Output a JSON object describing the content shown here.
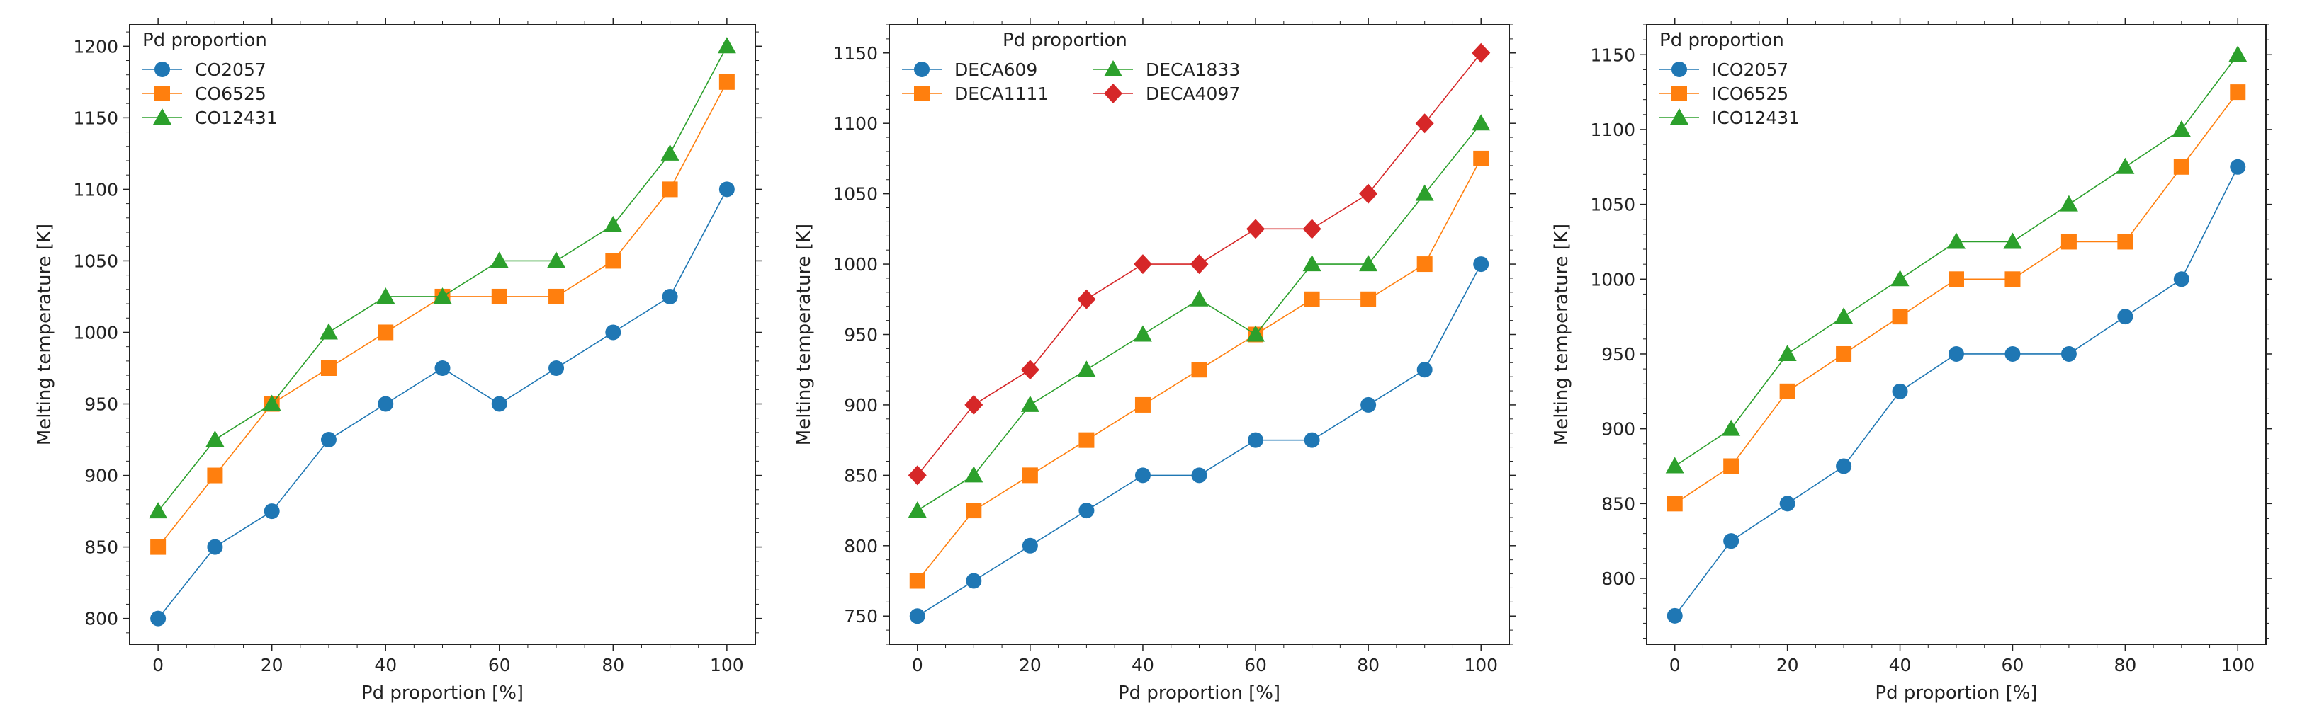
{
  "chart_data": [
    {
      "type": "line",
      "xlabel": "Pd proportion [%]",
      "ylabel": "Melting temperature [K]",
      "x": [
        0,
        10,
        20,
        30,
        40,
        50,
        60,
        70,
        80,
        90,
        100
      ],
      "xlim": [
        -5,
        105
      ],
      "ylim": [
        782,
        1215
      ],
      "xticks": [
        0,
        20,
        40,
        60,
        80,
        100
      ],
      "yticks": [
        800,
        850,
        900,
        950,
        1000,
        1050,
        1100,
        1150,
        1200
      ],
      "legend_title": "Pd proportion",
      "legend_columns": 1,
      "legend_position": "top-left",
      "series": [
        {
          "name": "CO2057",
          "color": "#1f77b4",
          "marker": "circle",
          "values": [
            800,
            850,
            875,
            925,
            950,
            975,
            950,
            975,
            1000,
            1025,
            1100
          ]
        },
        {
          "name": "CO6525",
          "color": "#ff7f0e",
          "marker": "square",
          "values": [
            850,
            900,
            950,
            975,
            1000,
            1025,
            1025,
            1025,
            1050,
            1100,
            1175
          ]
        },
        {
          "name": "CO12431",
          "color": "#2ca02c",
          "marker": "triangle",
          "values": [
            875,
            925,
            950,
            1000,
            1025,
            1025,
            1050,
            1050,
            1075,
            1125,
            1200
          ]
        }
      ]
    },
    {
      "type": "line",
      "xlabel": "Pd proportion [%]",
      "ylabel": "Melting temperature [K]",
      "x": [
        0,
        10,
        20,
        30,
        40,
        50,
        60,
        70,
        80,
        90,
        100
      ],
      "xlim": [
        -5,
        105
      ],
      "ylim": [
        730,
        1170
      ],
      "xticks": [
        0,
        20,
        40,
        60,
        80,
        100
      ],
      "yticks": [
        750,
        800,
        850,
        900,
        950,
        1000,
        1050,
        1100,
        1150
      ],
      "legend_title": "Pd proportion",
      "legend_columns": 2,
      "legend_position": "top-left",
      "series": [
        {
          "name": "DECA609",
          "color": "#1f77b4",
          "marker": "circle",
          "values": [
            750,
            775,
            800,
            825,
            850,
            850,
            875,
            875,
            900,
            925,
            1000
          ]
        },
        {
          "name": "DECA1111",
          "color": "#ff7f0e",
          "marker": "square",
          "values": [
            775,
            825,
            850,
            875,
            900,
            925,
            950,
            975,
            975,
            1000,
            1075
          ]
        },
        {
          "name": "DECA1833",
          "color": "#2ca02c",
          "marker": "triangle",
          "values": [
            825,
            850,
            900,
            925,
            950,
            975,
            950,
            1000,
            1000,
            1050,
            1100
          ]
        },
        {
          "name": "DECA4097",
          "color": "#d62728",
          "marker": "diamond",
          "values": [
            850,
            900,
            925,
            975,
            1000,
            1000,
            1025,
            1025,
            1050,
            1100,
            1150
          ]
        }
      ]
    },
    {
      "type": "line",
      "xlabel": "Pd proportion [%]",
      "ylabel": "Melting temperature [K]",
      "x": [
        0,
        10,
        20,
        30,
        40,
        50,
        60,
        70,
        80,
        90,
        100
      ],
      "xlim": [
        -5,
        105
      ],
      "ylim": [
        756,
        1170
      ],
      "xticks": [
        0,
        20,
        40,
        60,
        80,
        100
      ],
      "yticks": [
        800,
        850,
        900,
        950,
        1000,
        1050,
        1100,
        1150
      ],
      "legend_title": "Pd proportion",
      "legend_columns": 1,
      "legend_position": "top-left",
      "series": [
        {
          "name": "ICO2057",
          "color": "#1f77b4",
          "marker": "circle",
          "values": [
            775,
            825,
            850,
            875,
            925,
            950,
            950,
            950,
            975,
            1000,
            1075
          ]
        },
        {
          "name": "ICO6525",
          "color": "#ff7f0e",
          "marker": "square",
          "values": [
            850,
            875,
            925,
            950,
            975,
            1000,
            1000,
            1025,
            1025,
            1075,
            1125
          ]
        },
        {
          "name": "ICO12431",
          "color": "#2ca02c",
          "marker": "triangle",
          "values": [
            875,
            900,
            950,
            975,
            1000,
            1025,
            1025,
            1050,
            1075,
            1100,
            1150
          ]
        }
      ]
    }
  ]
}
